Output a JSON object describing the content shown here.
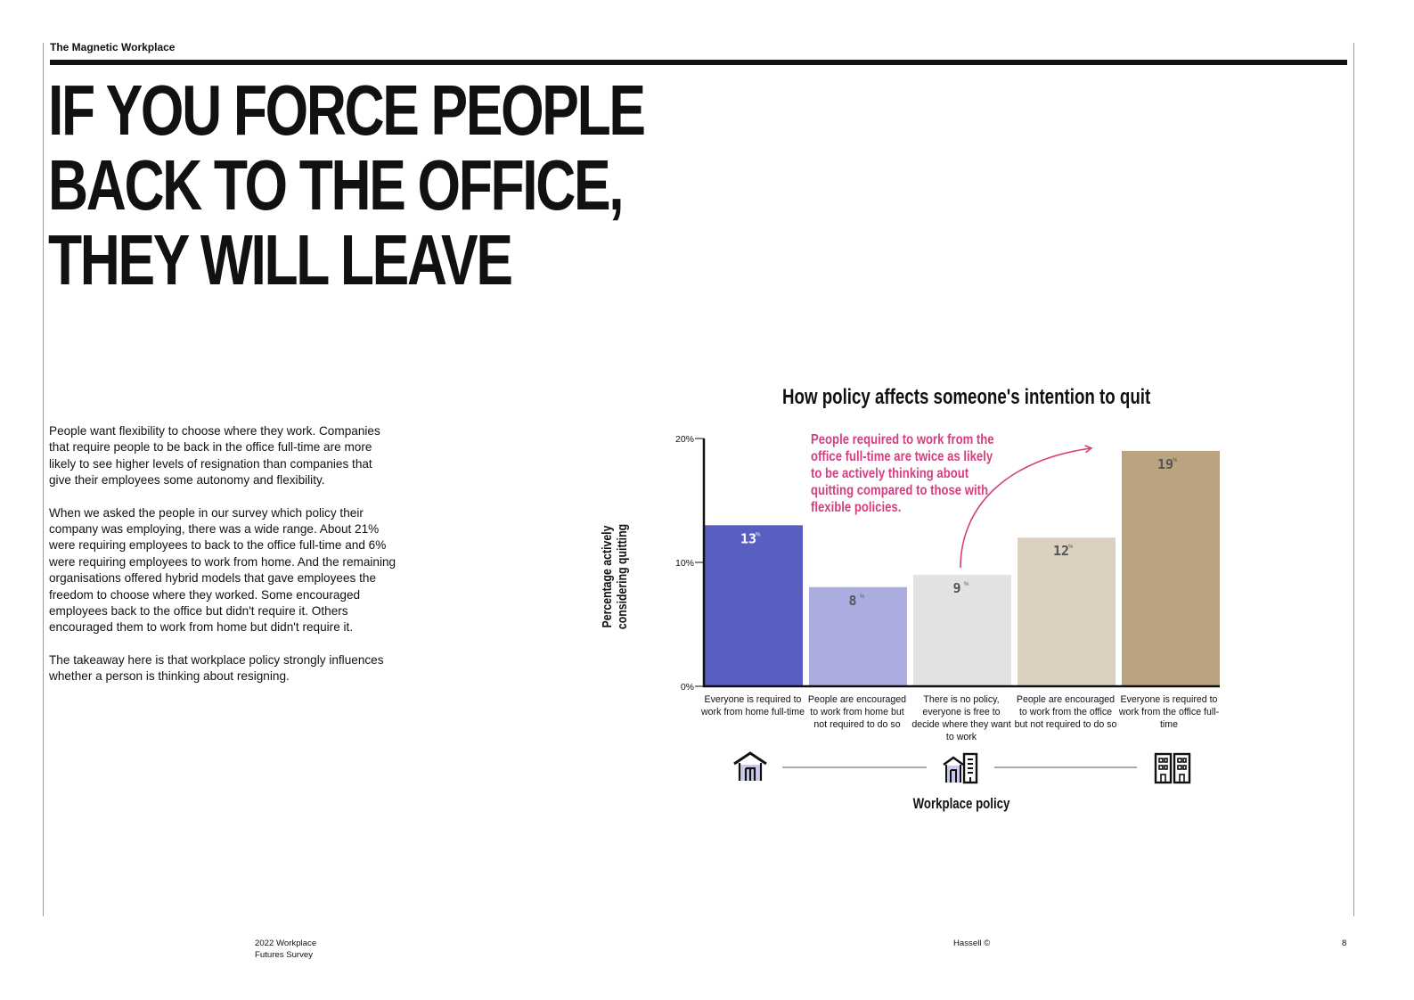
{
  "header": {
    "running_title": "The Magnetic Workplace"
  },
  "headline": [
    "IF YOU FORCE PEOPLE",
    "BACK TO THE OFFICE,",
    "THEY WILL LEAVE"
  ],
  "body": {
    "paragraphs": [
      "People want flexibility to choose where they work. Companies that require people to be back in the office full-time are more likely to see higher levels of resignation than companies that give their employees some autonomy and flexibility.",
      "When we asked the people in our survey which policy their company was employing, there was a wide range. About 21% were requiring employees to back to the office full-time and 6% were requiring employees to work from home. And the remaining organisations offered hybrid models that gave employees the freedom to choose where they worked. Some encouraged employees back to the office but didn't require it. Others encouraged them to work from home but didn't require it.",
      "The takeaway here is that workplace policy strongly influences whether a person is thinking about resigning."
    ]
  },
  "chart_data": {
    "type": "bar",
    "title": "How policy affects someone's intention to quit",
    "ylabel": "Percentage actively considering quitting",
    "xlabel": "Workplace policy",
    "ylim": [
      0,
      20
    ],
    "yticks": [
      0,
      10,
      20
    ],
    "ytick_labels": [
      "0%",
      "10%",
      "20%"
    ],
    "categories": [
      "Everyone is required to work from home full-time",
      "People are encouraged to work from home but not required to do so",
      "There is no policy, everyone is free to decide where they want to work",
      "People are encouraged to work from the office but not required to do so",
      "Everyone is required to work from the office full-time"
    ],
    "values": [
      13,
      8,
      9,
      12,
      19
    ],
    "value_suffix": "%",
    "bar_colors": [
      "#585fc1",
      "#abade0",
      "#e2e2e2",
      "#dcd1c1",
      "#b9a47f"
    ],
    "label_colors": [
      "#ffffff",
      "#555555",
      "#555555",
      "#555555",
      "#555555"
    ],
    "annotation": "People required to work from the office full-time are twice as likely to be actively thinking about quitting compared to those with flexible policies.",
    "annotation_color": "#d4407f",
    "grid": false,
    "legend": "none"
  },
  "icons": [
    "house-icon",
    "mixed-buildings-icon",
    "office-building-icon"
  ],
  "footer": {
    "publication": [
      "2022 Workplace",
      "Futures Survey"
    ],
    "copyright": "Hassell ©",
    "page_number": "8"
  }
}
